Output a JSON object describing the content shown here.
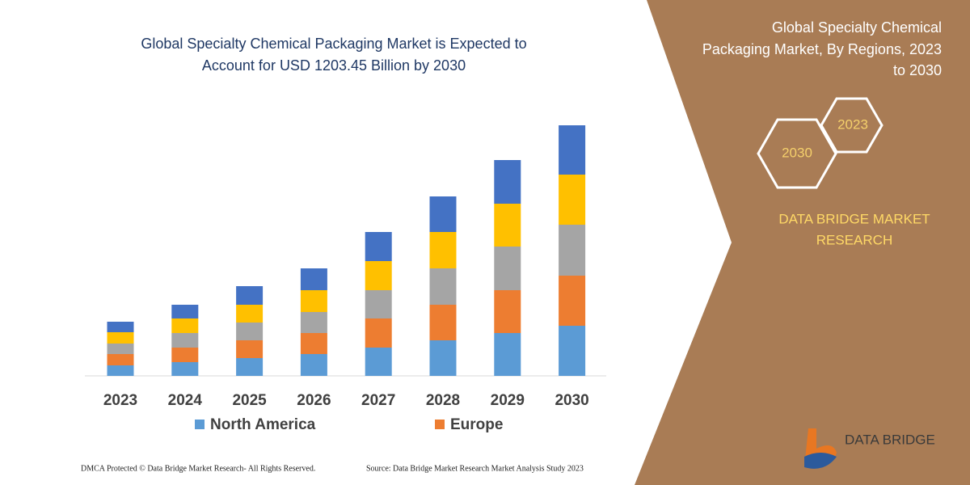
{
  "chart_data": {
    "type": "bar",
    "stacked": true,
    "title_lines": [
      "Global Specialty Chemical Packaging Market is Expected to",
      "Account for USD 1203.45 Billion by 2030"
    ],
    "categories": [
      "2023",
      "2024",
      "2025",
      "2026",
      "2027",
      "2028",
      "2029",
      "2030"
    ],
    "series": [
      {
        "name": "North America",
        "color": "#5b9bd5",
        "values": [
          13,
          17,
          22,
          27,
          35,
          44,
          53,
          62
        ]
      },
      {
        "name": "Europe",
        "color": "#ed7d31",
        "values": [
          14,
          18,
          22,
          26,
          36,
          44,
          53,
          62
        ]
      },
      {
        "color": "#a5a5a5",
        "values": [
          13,
          18,
          22,
          26,
          35,
          45,
          54,
          63
        ]
      },
      {
        "color": "#ffc000",
        "values": [
          14,
          18,
          22,
          27,
          36,
          45,
          53,
          62
        ]
      },
      {
        "color": "#4472c4",
        "values": [
          13,
          17,
          23,
          27,
          36,
          44,
          54,
          61
        ]
      }
    ]
  },
  "panel": {
    "title_lines": [
      "Global Specialty Chemical",
      "Packaging Market, By Regions, 2023",
      "to 2030"
    ],
    "hex_small": "2023",
    "hex_large": "2030",
    "brand_lines": [
      "DATA BRIDGE MARKET",
      "RESEARCH"
    ]
  },
  "logo": {
    "text": "DATA BRIDGE"
  },
  "footer": {
    "left": "DMCA Protected © Data Bridge Market Research-  All Rights Reserved.",
    "right": "Source: Data Bridge Market Research  Market Analysis Study 2023"
  }
}
